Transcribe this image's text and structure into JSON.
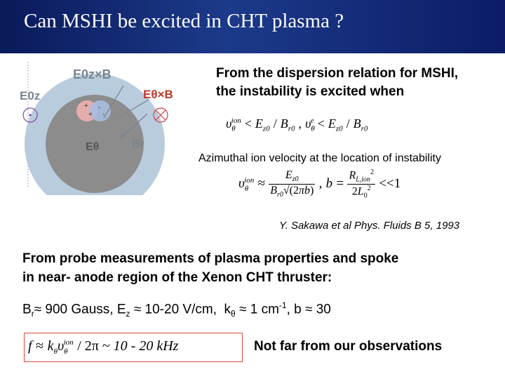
{
  "title": "Can  MSHI be excited in CHT plasma ?",
  "diagram": {
    "label_e0z_b": "E0z×B",
    "label_e0z": "E0z",
    "label_etheta_b": "Eθ×B",
    "label_etheta": "Eθ",
    "label_br": "Br",
    "colors": {
      "outer_ring": "#b9ccdd",
      "inner_core": "#8c8c8c",
      "label_color": "#7a8590",
      "red_label": "#c0392b",
      "pink_blob": "#f0b0b0",
      "blue_blob": "#a8bce0",
      "purple_marker": "#7a4aa0",
      "red_marker": "#d04040"
    }
  },
  "dispersion": {
    "line1": "From the dispersion relation for MSHI,",
    "line2": "the instability is excited when"
  },
  "azimuthal_note": "Azimuthal ion velocity at the location of instability",
  "citation": "Y. Sakawa et al Phys. Fluids B 5, 1993",
  "probe": {
    "line1": "From probe measurements of plasma properties and spoke",
    "line2": "in near- anode region of the Xenon CHT thruster:"
  },
  "measurements": {
    "br": "900 Gauss",
    "ez": "10-20 V/cm",
    "k": "1 cm",
    "k_exp": "-1",
    "b": "30"
  },
  "frequency_formula_result": "10 - 20 kHz",
  "conclusion": "Not far from our observations"
}
